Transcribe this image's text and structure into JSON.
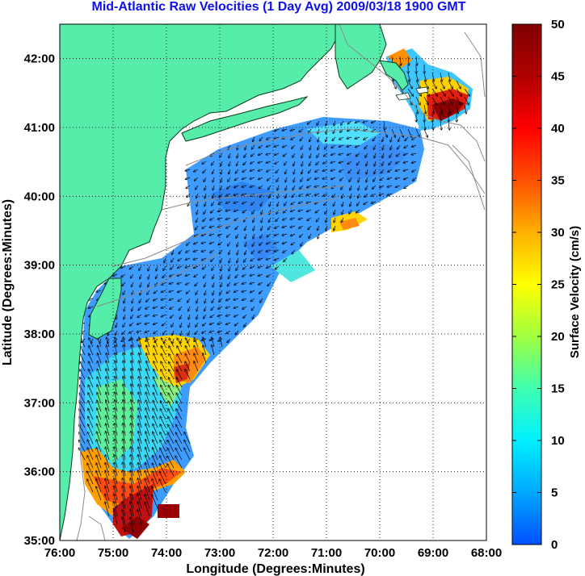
{
  "title": "Mid-Atlantic Raw Velocities (1 Day Avg) 2009/03/18 1900 GMT",
  "map": {
    "xlabel": "Longitude (Degrees:Minutes)",
    "ylabel": "Latitude (Degrees:Minutes)",
    "lon_range": [
      -76,
      -68
    ],
    "lat_range": [
      35,
      42.5
    ],
    "x_ticks": [
      "76:00",
      "75:00",
      "74:00",
      "73:00",
      "72:00",
      "71:00",
      "70:00",
      "69:00",
      "68:00"
    ],
    "y_ticks": [
      "35:00",
      "36:00",
      "37:00",
      "38:00",
      "39:00",
      "40:00",
      "41:00",
      "42:00"
    ],
    "grid": "dotted",
    "land_color": "#56ecaa",
    "coast_color": "#000000",
    "bathymetry_color": "#8a8a8a"
  },
  "colorbar": {
    "label": "Surface Velocity (cm/s)",
    "ticks": [
      "0",
      "5",
      "10",
      "15",
      "20",
      "25",
      "30",
      "35",
      "40",
      "45",
      "50"
    ],
    "range": [
      0,
      50
    ],
    "colors": [
      "#0050ff",
      "#00a8ff",
      "#00f0ff",
      "#40ffb0",
      "#a0ff40",
      "#ffff00",
      "#ffb000",
      "#ff5000",
      "#ff0000",
      "#b00000",
      "#800000"
    ]
  }
}
